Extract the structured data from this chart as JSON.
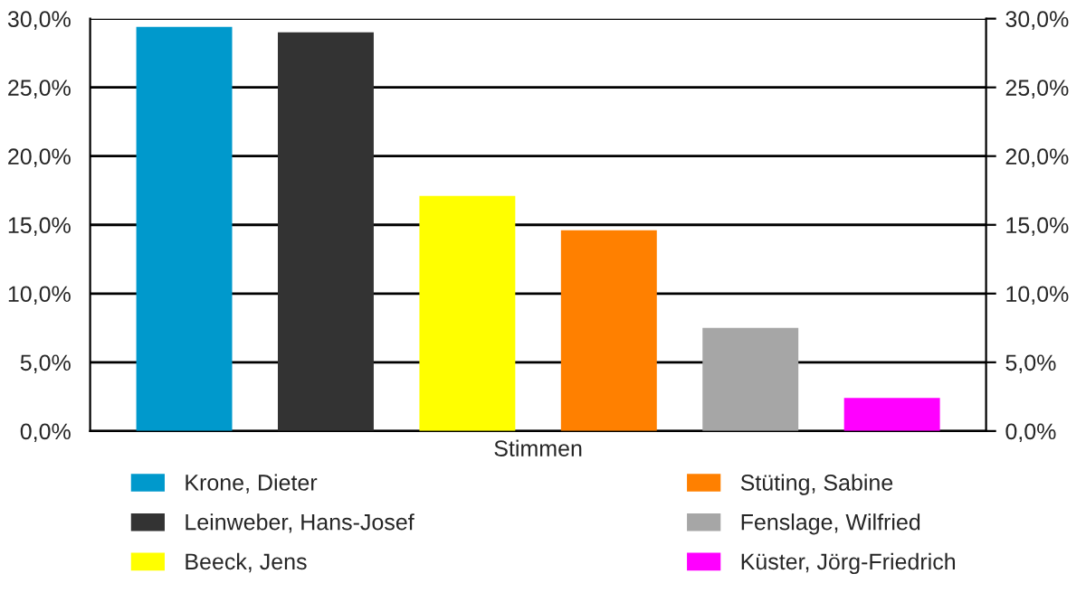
{
  "chart_data": {
    "type": "bar",
    "categories": [
      "Stimmen"
    ],
    "series": [
      {
        "name": "Krone, Dieter",
        "color": "#0099cc",
        "values": [
          29.4
        ]
      },
      {
        "name": "Leinweber, Hans-Josef",
        "color": "#333333",
        "values": [
          29.0
        ]
      },
      {
        "name": "Beeck, Jens",
        "color": "#ffff00",
        "values": [
          17.1
        ]
      },
      {
        "name": "Stüting, Sabine",
        "color": "#ff8000",
        "values": [
          14.6
        ]
      },
      {
        "name": "Fenslage, Wilfried",
        "color": "#a6a6a6",
        "values": [
          7.5
        ]
      },
      {
        "name": "Küster, Jörg-Friedrich",
        "color": "#ff00ff",
        "values": [
          2.4
        ]
      }
    ],
    "ylim": [
      0,
      30
    ],
    "yticks": [
      {
        "value": 0,
        "label": "0,0%"
      },
      {
        "value": 5,
        "label": "5,0%"
      },
      {
        "value": 10,
        "label": "10,0%"
      },
      {
        "value": 15,
        "label": "15,0%"
      },
      {
        "value": 20,
        "label": "20,0%"
      },
      {
        "value": 25,
        "label": "25,0%"
      },
      {
        "value": 30,
        "label": "30,0%"
      }
    ],
    "grid": "y",
    "legend": "bottom"
  }
}
